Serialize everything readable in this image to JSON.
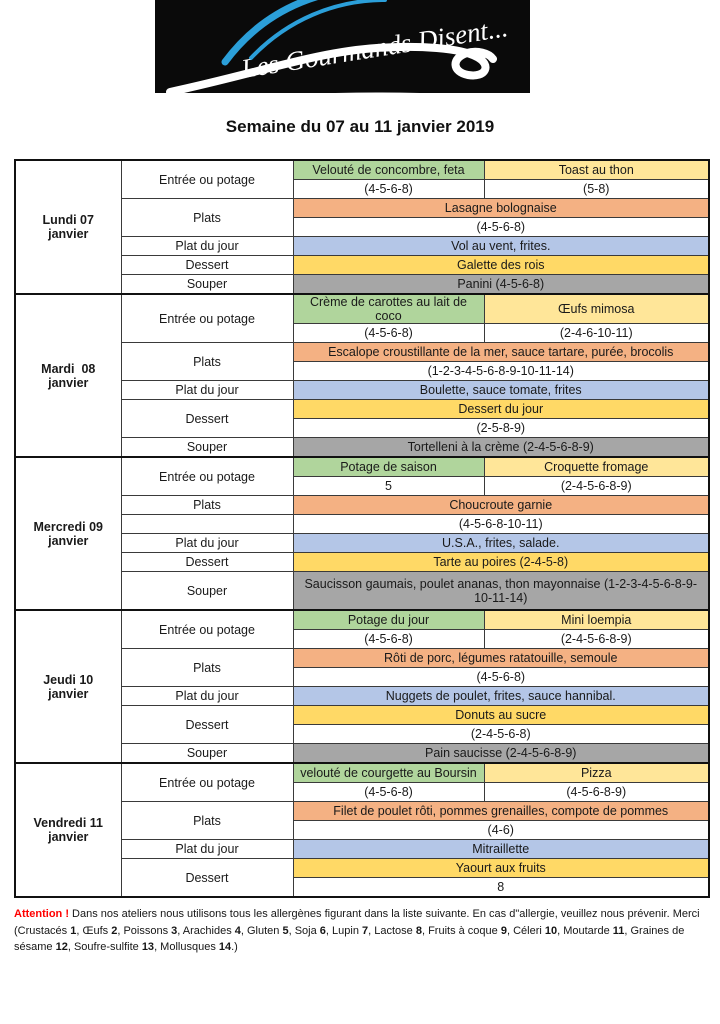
{
  "logo": {
    "brand": "Les Gourmands Disent..."
  },
  "title": "Semaine du 07 au 11 janvier 2019",
  "row_labels": {
    "entree": "Entrée ou potage",
    "plats": "Plats",
    "plat_du_jour": "Plat du jour",
    "dessert": "Dessert",
    "souper": "Souper"
  },
  "colors": {
    "green": "#b0d59c",
    "ylight": "#ffe699",
    "gold": "#ffd966",
    "orange": "#f4b183",
    "blue": "#b4c6e7",
    "gray": "#a6a6a6",
    "red": "#ff0000",
    "logo_blue": "#2b9fd9",
    "logo_bg": "#0a0a0a"
  },
  "days": [
    {
      "name_line1": "Lundi 07",
      "name_line2": "janvier",
      "entree_left_dish": "Velouté de concombre, feta",
      "entree_left_allergens": "(4-5-6-8)",
      "entree_right_dish": "Toast au thon",
      "entree_right_allergens": "(5-8)",
      "plats_dish": "Lasagne bolognaise",
      "plats_allergens": "(4-5-6-8)",
      "plat_du_jour": "Vol au vent, frites.",
      "dessert_dish": "Galette des rois",
      "souper": "Panini (4-5-6-8)"
    },
    {
      "name_line1": "Mardi  08",
      "name_line2": "janvier",
      "entree_left_dish": "Crème de carottes au lait de coco",
      "entree_left_allergens": "(4-5-6-8)",
      "entree_right_dish": "Œufs mimosa",
      "entree_right_allergens": "(2-4-6-10-11)",
      "plats_dish": "Escalope croustillante de la mer, sauce tartare, purée, brocolis",
      "plats_allergens": "(1-2-3-4-5-6-8-9-10-11-14)",
      "plat_du_jour": "Boulette, sauce tomate, frites",
      "dessert_dish": "Dessert du jour",
      "dessert_allergens": "(2-5-8-9)",
      "souper": "Tortelleni à la crème (2-4-5-6-8-9)"
    },
    {
      "name_line1": "Mercredi 09",
      "name_line2": "janvier",
      "entree_left_dish": "Potage de saison",
      "entree_left_allergens": "5",
      "entree_right_dish": "Croquette fromage",
      "entree_right_allergens": "(2-4-5-6-8-9)",
      "plats_dish": "Choucroute garnie",
      "plats_allergens": "(4-5-6-8-10-11)",
      "plat_du_jour": "U.S.A., frites, salade.",
      "dessert_dish": "Tarte au poires (2-4-5-8)",
      "souper": "Saucisson gaumais, poulet ananas, thon mayonnaise (1-2-3-4-5-6-8-9-10-11-14)"
    },
    {
      "name_line1": "Jeudi 10",
      "name_line2": "janvier",
      "entree_left_dish": "Potage du jour",
      "entree_left_allergens": "(4-5-6-8)",
      "entree_right_dish": "Mini loempia",
      "entree_right_allergens": "(2-4-5-6-8-9)",
      "plats_dish": "Rôti de porc, légumes ratatouille, semoule",
      "plats_allergens": "(4-5-6-8)",
      "plat_du_jour": "Nuggets de poulet, frites, sauce hannibal.",
      "dessert_dish": "Donuts au sucre",
      "dessert_allergens": "(2-4-5-6-8)",
      "souper": "Pain saucisse (2-4-5-6-8-9)"
    },
    {
      "name_line1": "Vendredi 11",
      "name_line2": "janvier",
      "entree_left_dish": "velouté de courgette au Boursin",
      "entree_left_allergens": "(4-5-6-8)",
      "entree_right_dish": "Pizza",
      "entree_right_allergens": "(4-5-6-8-9)",
      "plats_dish": "Filet de poulet rôti, pommes grenailles, compote de pommes",
      "plats_allergens": "(4-6)",
      "plat_du_jour": "Mitraillette",
      "dessert_dish": "Yaourt aux fruits",
      "dessert_allergens": "8"
    }
  ],
  "footer": {
    "attention": "Attention !",
    "text": "Dans nos ateliers nous utilisons tous les allergènes figurant dans la liste suivante. En cas d\"allergie, veuillez nous prévenir. Merci (Crustacés 1, Œufs 2, Poissons 3, Arachides 4, Gluten 5, Soja 6, Lupin 7, Lactose 8, Fruits à coque 9, Céleri 10, Moutarde 11, Graines de sésame 12, Soufre-sulfite 13, Mollusques 14.)"
  }
}
